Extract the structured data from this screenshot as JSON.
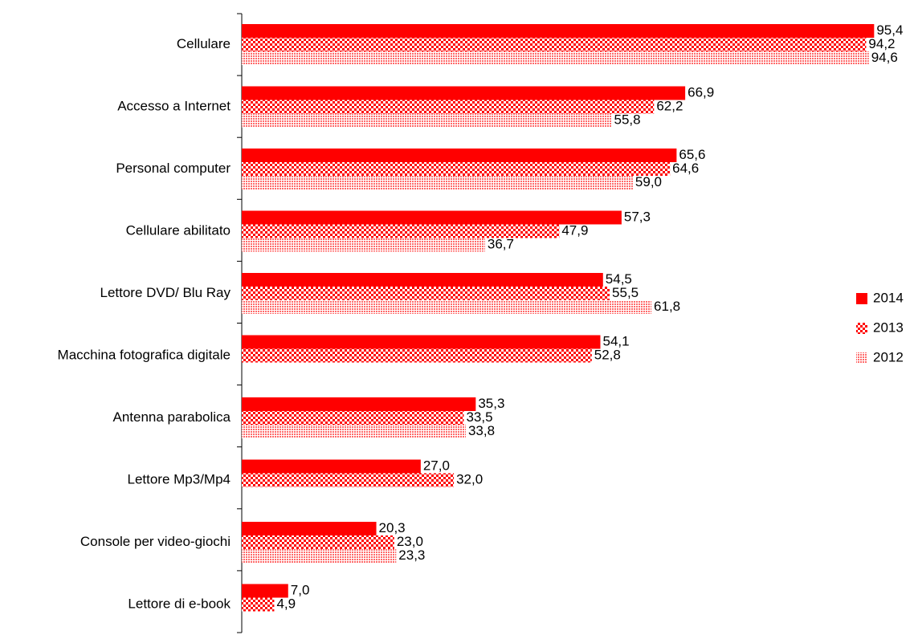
{
  "chart_data": {
    "type": "bar",
    "orientation": "horizontal",
    "categories": [
      "Cellulare",
      "Accesso a Internet",
      "Personal computer",
      "Cellulare abilitato",
      "Lettore DVD/ Blu Ray",
      "Macchina fotografica digitale",
      "Antenna parabolica",
      "Lettore Mp3/Mp4",
      "Console per video-giochi",
      "Lettore di e-book"
    ],
    "series": [
      {
        "name": "2014",
        "values": [
          95.4,
          66.9,
          65.6,
          57.3,
          54.5,
          54.1,
          35.3,
          27.0,
          20.3,
          7.0
        ],
        "labels": [
          "95,4",
          "66,9",
          "65,6",
          "57,3",
          "54,5",
          "54,1",
          "35,3",
          "27,0",
          "20,3",
          "7,0"
        ]
      },
      {
        "name": "2013",
        "values": [
          94.2,
          62.2,
          64.6,
          47.9,
          55.5,
          52.8,
          33.5,
          32.0,
          23.0,
          4.9
        ],
        "labels": [
          "94,2",
          "62,2",
          "64,6",
          "47,9",
          "55,5",
          "52,8",
          "33,5",
          "32,0",
          "23,0",
          "4,9"
        ]
      },
      {
        "name": "2012",
        "values": [
          94.6,
          55.8,
          59.0,
          36.7,
          61.8,
          null,
          33.8,
          null,
          23.3,
          null
        ],
        "labels": [
          "94,6",
          "55,8",
          "59,0",
          "36,7",
          "61,8",
          null,
          "33,8",
          null,
          "23,3",
          null
        ]
      }
    ],
    "xlim": [
      0,
      100
    ],
    "grid": false,
    "legend_position": "right",
    "colors": {
      "bar": "#ff0000",
      "background": "#ffffff",
      "axis": "#000000"
    },
    "series_fill": [
      "solid",
      "checkerboard",
      "dotted"
    ]
  }
}
